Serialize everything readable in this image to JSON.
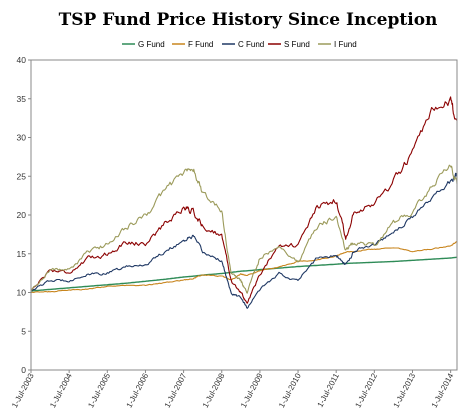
{
  "chart_data": {
    "type": "line",
    "title": "TSP Fund Price History Since Inception",
    "xlabel": "",
    "ylabel": "",
    "ylim": [
      0,
      40
    ],
    "yticks": [
      0,
      5,
      10,
      15,
      20,
      25,
      30,
      35,
      40
    ],
    "xlim": [
      "2003-07-01",
      "2014-09-01"
    ],
    "xticks": [
      "1-Jul-2003",
      "1-Jul-2004",
      "1-Jul-2005",
      "1-Jul-2006",
      "1-Jul-2007",
      "1-Jul-2008",
      "1-Jul-2009",
      "1-Jul-2010",
      "1-Jul-2011",
      "1-Jul-2012",
      "1-Jul-2013",
      "1-Jul-2014"
    ],
    "grid": false,
    "legend_position": "top",
    "x": [
      "2003-07",
      "2004-01",
      "2004-07",
      "2005-01",
      "2005-07",
      "2006-01",
      "2006-07",
      "2007-01",
      "2007-07",
      "2007-10",
      "2008-01",
      "2008-07",
      "2008-10",
      "2009-01",
      "2009-03",
      "2009-07",
      "2010-01",
      "2010-07",
      "2011-01",
      "2011-07",
      "2011-10",
      "2012-01",
      "2012-07",
      "2013-01",
      "2013-07",
      "2014-01",
      "2014-07",
      "2014-09"
    ],
    "series": [
      {
        "name": "G Fund",
        "color": "#2e8b57",
        "values": [
          10.2,
          10.4,
          10.6,
          10.8,
          11.0,
          11.2,
          11.45,
          11.7,
          12.0,
          12.1,
          12.25,
          12.45,
          12.6,
          12.75,
          12.8,
          12.95,
          13.15,
          13.35,
          13.5,
          13.65,
          13.75,
          13.8,
          13.9,
          14.0,
          14.15,
          14.3,
          14.45,
          14.55
        ]
      },
      {
        "name": "F Fund",
        "color": "#c8851e",
        "values": [
          10.0,
          10.1,
          10.3,
          10.5,
          10.8,
          10.9,
          10.9,
          11.3,
          11.6,
          11.8,
          12.3,
          12.1,
          11.6,
          12.4,
          12.2,
          12.8,
          13.3,
          14.0,
          14.2,
          14.7,
          15.2,
          15.3,
          15.6,
          15.8,
          15.3,
          15.6,
          16.0,
          16.6
        ]
      },
      {
        "name": "C Fund",
        "color": "#1f3864",
        "values": [
          10.3,
          11.5,
          11.6,
          12.3,
          12.5,
          13.3,
          13.6,
          15.3,
          16.7,
          17.3,
          15.2,
          14.1,
          9.8,
          9.4,
          8.0,
          10.4,
          12.4,
          11.5,
          14.5,
          14.8,
          13.5,
          15.6,
          16.2,
          17.9,
          19.7,
          22.3,
          24.3,
          25.2
        ]
      },
      {
        "name": "S Fund",
        "color": "#8b0000",
        "values": [
          10.3,
          12.9,
          12.6,
          14.3,
          15.0,
          16.5,
          16.3,
          18.8,
          21.0,
          20.5,
          18.5,
          17.4,
          11.5,
          10.0,
          8.6,
          12.3,
          16.3,
          16.0,
          21.0,
          21.9,
          17.0,
          20.7,
          21.5,
          24.3,
          28.0,
          33.0,
          34.5,
          32.4
        ]
      },
      {
        "name": "I Fund",
        "color": "#9b9a5a",
        "values": [
          10.2,
          13.0,
          12.9,
          15.2,
          16.2,
          18.5,
          19.8,
          23.2,
          25.5,
          26.0,
          22.8,
          20.5,
          12.3,
          11.5,
          10.0,
          14.5,
          16.0,
          14.0,
          18.5,
          19.8,
          15.5,
          16.5,
          16.2,
          19.0,
          20.5,
          23.5,
          26.5,
          24.0
        ]
      }
    ]
  }
}
